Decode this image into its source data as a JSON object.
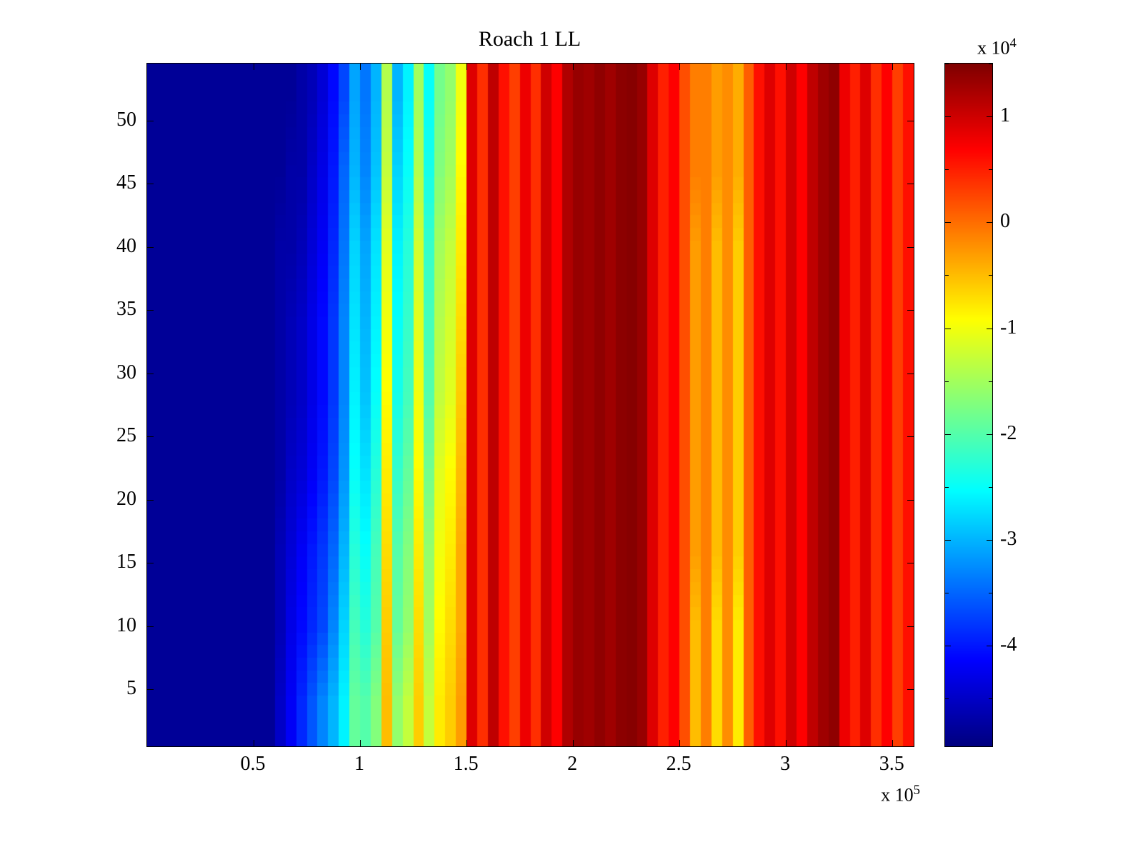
{
  "figure": {
    "x_exponent_label": {
      "prefix": "x 10",
      "exp": "5"
    },
    "colorbar_exponent_label": {
      "prefix": "x 10",
      "exp": "4"
    },
    "colors": {
      "background": "#ffffff",
      "axis": "#000000"
    }
  },
  "chart_data": {
    "type": "heatmap",
    "title": "Roach 1 LL",
    "colormap": "jet",
    "legend_position": "colorbar-right",
    "x_range_units_1e5": [
      0,
      3.6
    ],
    "x_unit_multiplier": 100000,
    "y_range": [
      0.5,
      54.5
    ],
    "clim_units_1e4": [
      -4.95,
      1.5
    ],
    "value_unit_multiplier": 10000,
    "x_ticks": [
      {
        "value": 0.5,
        "label": "0.5"
      },
      {
        "value": 1,
        "label": "1"
      },
      {
        "value": 1.5,
        "label": "1.5"
      },
      {
        "value": 2,
        "label": "2"
      },
      {
        "value": 2.5,
        "label": "2.5"
      },
      {
        "value": 3,
        "label": "3"
      },
      {
        "value": 3.5,
        "label": "3.5"
      }
    ],
    "y_ticks": [
      {
        "value": 5,
        "label": "5"
      },
      {
        "value": 10,
        "label": "10"
      },
      {
        "value": 15,
        "label": "15"
      },
      {
        "value": 20,
        "label": "20"
      },
      {
        "value": 25,
        "label": "25"
      },
      {
        "value": 30,
        "label": "30"
      },
      {
        "value": 35,
        "label": "35"
      },
      {
        "value": 40,
        "label": "40"
      },
      {
        "value": 45,
        "label": "45"
      },
      {
        "value": 50,
        "label": "50"
      }
    ],
    "colorbar_ticks": [
      {
        "value": 1,
        "label": "1"
      },
      {
        "value": 0,
        "label": "0"
      },
      {
        "value": -1,
        "label": "-1"
      },
      {
        "value": -2,
        "label": "-2"
      },
      {
        "value": -3,
        "label": "-3"
      },
      {
        "value": -4,
        "label": "-4"
      }
    ],
    "colorbar_minor_ticks_units_1e4": [
      1.5,
      0.5,
      -0.5,
      -1.5,
      -2.5,
      -3.5,
      -4.5
    ],
    "grid": {
      "n_cols": 72,
      "x_start_units_1e5": 0.025,
      "x_step_units_1e5": 0.05,
      "rows_order": "bottom_to_top",
      "y_centers": [
        4,
        10,
        16,
        22,
        28,
        34,
        40,
        46,
        52
      ],
      "values_units_1e4": [
        [
          -4.8,
          -4.8,
          -4.8,
          -4.8,
          -4.8,
          -4.8,
          -4.8,
          -4.8,
          -4.8,
          -4.8,
          -4.8,
          -4.8,
          -4.5,
          -4.2,
          -3.9,
          -3.6,
          -3.3,
          -3.0,
          -2.6,
          -1.9,
          -2.0,
          -1.7,
          -0.5,
          -1.6,
          -1.3,
          -0.6,
          -1.3,
          -0.8,
          -0.6,
          -0.3,
          0.9,
          0.4,
          1.1,
          0.6,
          0.3,
          0.8,
          0.4,
          1.0,
          0.7,
          1.2,
          1.35,
          1.3,
          1.4,
          1.3,
          1.42,
          1.45,
          1.35,
          0.9,
          0.5,
          0.7,
          0.2,
          -0.5,
          -0.1,
          -0.7,
          -0.2,
          -0.8,
          0.1,
          0.6,
          0.9,
          0.6,
          1.0,
          0.7,
          1.1,
          1.3,
          1.4,
          0.8,
          0.5,
          0.9,
          0.4,
          0.7,
          0.3,
          0.6
        ],
        [
          -4.8,
          -4.8,
          -4.8,
          -4.8,
          -4.8,
          -4.8,
          -4.8,
          -4.8,
          -4.8,
          -4.8,
          -4.8,
          -4.8,
          -4.6,
          -4.3,
          -4.1,
          -3.9,
          -3.7,
          -3.3,
          -2.8,
          -2.1,
          -2.3,
          -2.0,
          -0.6,
          -1.9,
          -1.6,
          -0.7,
          -1.5,
          -0.9,
          -0.7,
          -0.4,
          0.9,
          0.4,
          1.1,
          0.6,
          0.3,
          0.8,
          0.4,
          1.0,
          0.7,
          1.2,
          1.35,
          1.3,
          1.4,
          1.3,
          1.42,
          1.45,
          1.35,
          0.9,
          0.5,
          0.7,
          0.2,
          -0.5,
          -0.1,
          -0.7,
          -0.2,
          -0.8,
          0.1,
          0.6,
          0.9,
          0.6,
          1.0,
          0.7,
          1.1,
          1.3,
          1.4,
          0.8,
          0.5,
          0.9,
          0.4,
          0.7,
          0.3,
          0.6
        ],
        [
          -4.8,
          -4.8,
          -4.8,
          -4.8,
          -4.8,
          -4.8,
          -4.8,
          -4.8,
          -4.8,
          -4.8,
          -4.8,
          -4.8,
          -4.6,
          -4.4,
          -4.2,
          -4.0,
          -3.8,
          -3.5,
          -3.0,
          -2.3,
          -2.5,
          -2.1,
          -0.7,
          -2.0,
          -1.7,
          -0.8,
          -1.6,
          -1.0,
          -0.8,
          -0.4,
          0.9,
          0.4,
          1.1,
          0.6,
          0.3,
          0.8,
          0.4,
          1.0,
          0.7,
          1.2,
          1.35,
          1.3,
          1.4,
          1.3,
          1.42,
          1.45,
          1.35,
          0.9,
          0.5,
          0.7,
          0.2,
          -0.3,
          -0.1,
          -0.5,
          -0.2,
          -0.6,
          0.1,
          0.6,
          0.9,
          0.6,
          1.0,
          0.7,
          1.1,
          1.3,
          1.4,
          0.8,
          0.5,
          0.9,
          0.4,
          0.7,
          0.3,
          0.6
        ],
        [
          -4.8,
          -4.8,
          -4.8,
          -4.8,
          -4.8,
          -4.8,
          -4.8,
          -4.8,
          -4.8,
          -4.8,
          -4.8,
          -4.8,
          -4.7,
          -4.5,
          -4.4,
          -4.2,
          -4.0,
          -3.7,
          -3.2,
          -2.5,
          -2.7,
          -2.3,
          -0.8,
          -2.2,
          -1.9,
          -0.9,
          -1.8,
          -1.1,
          -0.9,
          -0.5,
          0.9,
          0.4,
          1.1,
          0.6,
          0.3,
          0.8,
          0.4,
          1.0,
          0.7,
          1.2,
          1.35,
          1.3,
          1.4,
          1.3,
          1.42,
          1.45,
          1.35,
          0.9,
          0.5,
          0.7,
          0.2,
          -0.3,
          -0.1,
          -0.5,
          -0.2,
          -0.6,
          0.1,
          0.6,
          0.9,
          0.6,
          1.0,
          0.7,
          1.1,
          1.3,
          1.4,
          0.8,
          0.5,
          0.9,
          0.4,
          0.7,
          0.3,
          0.6
        ],
        [
          -4.8,
          -4.8,
          -4.8,
          -4.8,
          -4.8,
          -4.8,
          -4.8,
          -4.8,
          -4.8,
          -4.8,
          -4.8,
          -4.8,
          -4.7,
          -4.6,
          -4.5,
          -4.3,
          -4.1,
          -3.8,
          -3.3,
          -2.6,
          -2.9,
          -2.5,
          -0.9,
          -2.4,
          -2.1,
          -1.0,
          -2.0,
          -1.3,
          -1.1,
          -0.6,
          0.9,
          0.4,
          1.1,
          0.6,
          0.3,
          0.8,
          0.4,
          1.0,
          0.7,
          1.2,
          1.35,
          1.3,
          1.4,
          1.3,
          1.42,
          1.45,
          1.35,
          0.9,
          0.5,
          0.7,
          0.2,
          -0.3,
          -0.1,
          -0.5,
          -0.2,
          -0.6,
          0.1,
          0.6,
          0.9,
          0.6,
          1.0,
          0.7,
          1.1,
          1.3,
          1.4,
          0.8,
          0.5,
          0.9,
          0.4,
          0.7,
          0.3,
          0.6
        ],
        [
          -4.8,
          -4.8,
          -4.8,
          -4.8,
          -4.8,
          -4.8,
          -4.8,
          -4.8,
          -4.8,
          -4.8,
          -4.8,
          -4.8,
          -4.7,
          -4.6,
          -4.5,
          -4.3,
          -4.1,
          -3.8,
          -3.3,
          -2.7,
          -3.0,
          -2.6,
          -1.0,
          -2.5,
          -2.2,
          -1.1,
          -2.1,
          -1.4,
          -1.2,
          -0.7,
          0.9,
          0.4,
          1.1,
          0.6,
          0.3,
          0.8,
          0.4,
          1.0,
          0.7,
          1.2,
          1.35,
          1.3,
          1.4,
          1.3,
          1.42,
          1.45,
          1.35,
          0.9,
          0.5,
          0.7,
          0.2,
          -0.3,
          -0.1,
          -0.5,
          -0.2,
          -0.6,
          0.1,
          0.6,
          0.9,
          0.6,
          1.0,
          0.7,
          1.1,
          1.3,
          1.4,
          0.8,
          0.5,
          0.9,
          0.4,
          0.7,
          0.3,
          0.6
        ],
        [
          -4.8,
          -4.8,
          -4.8,
          -4.8,
          -4.8,
          -4.8,
          -4.8,
          -4.8,
          -4.8,
          -4.8,
          -4.8,
          -4.8,
          -4.7,
          -4.7,
          -4.6,
          -4.4,
          -4.2,
          -3.9,
          -3.4,
          -2.8,
          -3.1,
          -2.7,
          -1.1,
          -2.6,
          -2.3,
          -1.2,
          -2.2,
          -1.5,
          -1.3,
          -0.8,
          0.9,
          0.4,
          1.1,
          0.6,
          0.3,
          0.8,
          0.4,
          1.0,
          0.7,
          1.2,
          1.35,
          1.3,
          1.4,
          1.3,
          1.42,
          1.45,
          1.35,
          0.9,
          0.5,
          0.7,
          0.2,
          -0.3,
          -0.1,
          -0.5,
          -0.2,
          -0.6,
          0.1,
          0.6,
          0.9,
          0.6,
          1.0,
          0.7,
          1.1,
          1.3,
          1.4,
          0.8,
          0.5,
          0.9,
          0.4,
          0.7,
          0.3,
          0.6
        ],
        [
          -4.8,
          -4.8,
          -4.8,
          -4.8,
          -4.8,
          -4.8,
          -4.8,
          -4.8,
          -4.8,
          -4.8,
          -4.8,
          -4.8,
          -4.8,
          -4.7,
          -4.7,
          -4.5,
          -4.3,
          -4.0,
          -3.5,
          -3.0,
          -3.3,
          -2.9,
          -1.3,
          -2.8,
          -2.5,
          -1.4,
          -2.4,
          -1.7,
          -1.5,
          -0.9,
          0.9,
          0.4,
          1.1,
          0.6,
          0.3,
          0.8,
          0.4,
          1.0,
          0.7,
          1.2,
          1.35,
          1.3,
          1.4,
          1.3,
          1.42,
          1.45,
          1.35,
          0.9,
          0.5,
          0.7,
          0.2,
          -0.1,
          -0.1,
          -0.3,
          -0.2,
          -0.4,
          0.1,
          0.6,
          0.9,
          0.6,
          1.0,
          0.7,
          1.1,
          1.3,
          1.4,
          0.8,
          0.5,
          0.9,
          0.4,
          0.7,
          0.3,
          0.6
        ],
        [
          -4.8,
          -4.8,
          -4.8,
          -4.8,
          -4.8,
          -4.8,
          -4.8,
          -4.8,
          -4.8,
          -4.8,
          -4.8,
          -4.8,
          -4.8,
          -4.8,
          -4.7,
          -4.6,
          -4.4,
          -4.1,
          -3.7,
          -3.1,
          -3.4,
          -3.0,
          -1.4,
          -3.0,
          -2.6,
          -1.5,
          -2.5,
          -1.8,
          -1.6,
          -1.0,
          0.9,
          0.4,
          1.1,
          0.6,
          0.3,
          0.8,
          0.4,
          1.0,
          0.7,
          1.2,
          1.35,
          1.3,
          1.4,
          1.3,
          1.42,
          1.45,
          1.35,
          0.9,
          0.5,
          0.7,
          0.2,
          -0.1,
          -0.1,
          -0.3,
          -0.2,
          -0.4,
          0.1,
          0.6,
          0.9,
          0.6,
          1.0,
          0.7,
          1.1,
          1.3,
          1.4,
          0.8,
          0.5,
          0.9,
          0.4,
          0.7,
          0.3,
          0.6
        ]
      ]
    }
  }
}
